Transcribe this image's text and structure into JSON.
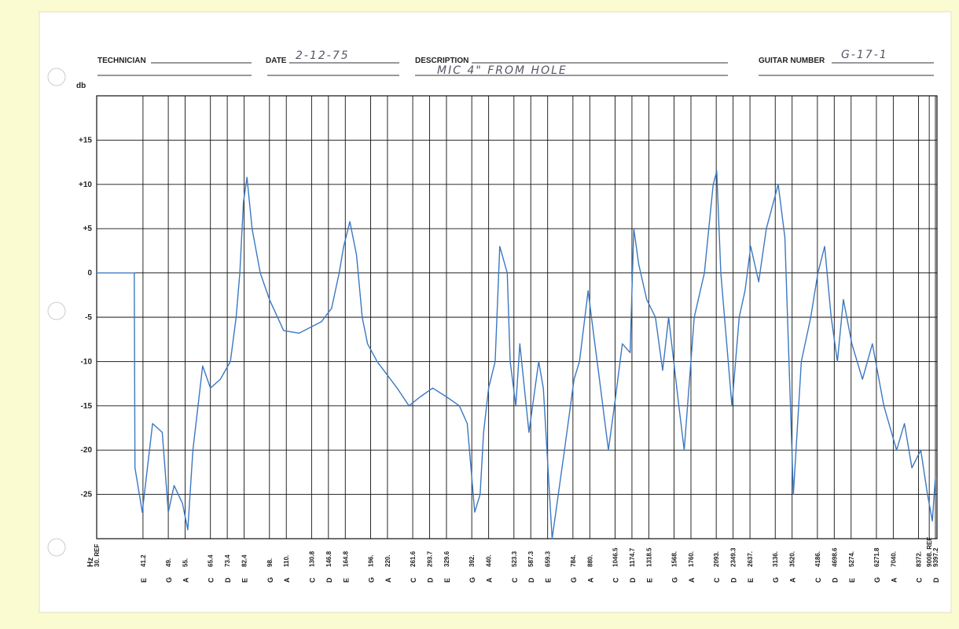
{
  "form": {
    "technician": {
      "label": "TECHNICIAN"
    },
    "date": {
      "label": "DATE",
      "value": "2-12-75"
    },
    "description": {
      "label": "DESCRIPTION",
      "value": "MIC 4\" FROM HOLE"
    },
    "guitar_number": {
      "label": "GUITAR NUMBER",
      "value": "G-17-1"
    }
  },
  "chart_data": {
    "type": "line",
    "y_label": "db",
    "x_label": "Hz",
    "log_x": true,
    "grid": true,
    "xlim": [
      30,
      9397.2
    ],
    "ylim": [
      -30,
      20
    ],
    "yticks": [
      {
        "value": 15,
        "label": "+15"
      },
      {
        "value": 10,
        "label": "+10"
      },
      {
        "value": 5,
        "label": "+5"
      },
      0,
      -5,
      -10,
      -15,
      -20,
      -25
    ],
    "xticks": [
      {
        "value": 30,
        "label": "30. REF"
      },
      41.2,
      {
        "value": 49,
        "label": "49."
      },
      {
        "value": 55,
        "label": "55."
      },
      65.4,
      73.4,
      82.4,
      {
        "value": 98,
        "label": "98."
      },
      {
        "value": 110,
        "label": "110."
      },
      130.8,
      146.8,
      164.8,
      {
        "value": 196,
        "label": "196."
      },
      {
        "value": 220,
        "label": "220."
      },
      261.6,
      293.7,
      329.6,
      {
        "value": 392,
        "label": "392."
      },
      {
        "value": 440,
        "label": "440."
      },
      523.3,
      587.3,
      659.3,
      {
        "value": 784,
        "label": "784."
      },
      {
        "value": 880,
        "label": "880."
      },
      1046.5,
      1174.7,
      1318.5,
      {
        "value": 1568,
        "label": "1568."
      },
      {
        "value": 1760,
        "label": "1760."
      },
      {
        "value": 2093,
        "label": "2093."
      },
      2349.3,
      {
        "value": 2637,
        "label": "2637."
      },
      {
        "value": 3136,
        "label": "3136."
      },
      {
        "value": 3520,
        "label": "3520."
      },
      {
        "value": 4186,
        "label": "4186."
      },
      4698.6,
      {
        "value": 5274,
        "label": "5274."
      },
      6271.8,
      {
        "value": 7040,
        "label": "7040."
      },
      {
        "value": 8372,
        "label": "8372."
      },
      {
        "value": 9008,
        "label": "9008. REF"
      },
      9397.2
    ],
    "xtick_notes": [
      null,
      "E",
      "G",
      "A",
      "C",
      "D",
      "E",
      "G",
      "A",
      "C",
      "D",
      "E",
      "G",
      "A",
      "C",
      "D",
      "E",
      "G",
      "A",
      "C",
      "D",
      "E",
      "G",
      "A",
      "C",
      "D",
      "E",
      "G",
      "A",
      "C",
      "D",
      "E",
      "G",
      "A",
      "C",
      "D",
      "E",
      "G",
      "A",
      "C",
      null,
      "D"
    ],
    "x": [
      30,
      38.8,
      39,
      41,
      44,
      47,
      49,
      51,
      54,
      56,
      58,
      62,
      65.4,
      70,
      75,
      78,
      80,
      82,
      84,
      87,
      92,
      98,
      108,
      120,
      140,
      150,
      158,
      163,
      170,
      178,
      185,
      192,
      205,
      235,
      255,
      275,
      300,
      330,
      360,
      380,
      400,
      415,
      425,
      440,
      460,
      475,
      500,
      510,
      530,
      545,
      580,
      620,
      640,
      680,
      740,
      790,
      820,
      870,
      890,
      940,
      1000,
      1050,
      1100,
      1160,
      1190,
      1230,
      1300,
      1380,
      1450,
      1510,
      1620,
      1680,
      1800,
      1930,
      2050,
      2100,
      2160,
      2330,
      2450,
      2550,
      2650,
      2800,
      2950,
      3200,
      3350,
      3550,
      3750,
      4000,
      4200,
      4400,
      4600,
      4800,
      5000,
      5300,
      5700,
      6100,
      6600,
      7200,
      7600,
      8000,
      8500,
      8900,
      9200,
      9397
    ],
    "series": [
      {
        "color": "#3b78c2",
        "values": [
          0,
          0,
          -22,
          -27,
          -17,
          -18,
          -27,
          -24,
          -26,
          -29,
          -20,
          -10.5,
          -13,
          -12,
          -10,
          -5,
          0,
          8,
          10.8,
          5,
          0,
          -3,
          -6.5,
          -6.8,
          -5.5,
          -4,
          0,
          3,
          5.8,
          2,
          -5,
          -8,
          -10,
          -13,
          -15,
          -14,
          -13,
          -14,
          -15,
          -17,
          -27,
          -25,
          -18,
          -13,
          -10,
          3,
          0,
          -10,
          -15,
          -8,
          -18,
          -10,
          -13,
          -30,
          -20,
          -12,
          -10,
          -2,
          -5,
          -12,
          -20,
          -14,
          -8,
          -9,
          5,
          1,
          -3,
          -5,
          -11,
          -5,
          -15,
          -20,
          -5,
          0,
          10,
          11.5,
          0,
          -15,
          -5,
          -2,
          3,
          -1,
          5,
          10,
          4,
          -25,
          -10,
          -5,
          0,
          3,
          -5,
          -10,
          -3,
          -8,
          -12,
          -8,
          -15,
          -20,
          -17,
          -22,
          -20,
          -25,
          -28,
          -23
        ]
      }
    ]
  }
}
